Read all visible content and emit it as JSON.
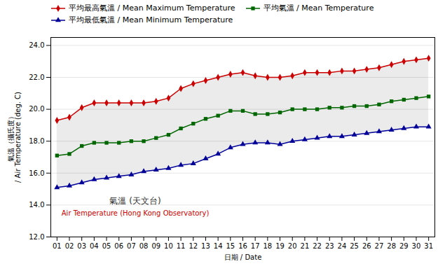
{
  "chart_data": {
    "type": "line",
    "xlabel": "日期 / Date",
    "ylabel": "氣溫（攝氏度）\n/ Air Temperature (deg. C)",
    "x": [
      1,
      2,
      3,
      4,
      5,
      6,
      7,
      8,
      9,
      10,
      11,
      12,
      13,
      14,
      15,
      16,
      17,
      18,
      19,
      20,
      21,
      22,
      23,
      24,
      25,
      26,
      27,
      28,
      29,
      30,
      31
    ],
    "series": [
      {
        "name": "平均最高氣溫 / Mean Maximum Temperature",
        "color": "#cc0000",
        "marker": "diamond",
        "values": [
          19.3,
          19.5,
          20.1,
          20.4,
          20.4,
          20.4,
          20.4,
          20.4,
          20.5,
          20.7,
          21.3,
          21.6,
          21.8,
          22.0,
          22.2,
          22.3,
          22.1,
          22.0,
          22.0,
          22.1,
          22.3,
          22.3,
          22.3,
          22.4,
          22.4,
          22.5,
          22.6,
          22.8,
          23.0,
          23.1,
          23.2
        ]
      },
      {
        "name": "平均氣溫 / Mean Temperature",
        "color": "#006600",
        "marker": "square",
        "values": [
          17.1,
          17.2,
          17.7,
          17.9,
          17.9,
          17.9,
          18.0,
          18.0,
          18.2,
          18.4,
          18.8,
          19.1,
          19.4,
          19.6,
          19.9,
          19.9,
          19.7,
          19.7,
          19.8,
          20.0,
          20.0,
          20.0,
          20.1,
          20.1,
          20.2,
          20.2,
          20.3,
          20.5,
          20.6,
          20.7,
          20.8
        ]
      },
      {
        "name": "平均最低氣溫 / Mean Minimum Temperature",
        "color": "#000099",
        "marker": "triangle",
        "values": [
          15.1,
          15.2,
          15.4,
          15.6,
          15.7,
          15.8,
          15.9,
          16.1,
          16.2,
          16.3,
          16.5,
          16.6,
          16.9,
          17.2,
          17.6,
          17.8,
          17.9,
          17.9,
          17.8,
          18.0,
          18.1,
          18.2,
          18.3,
          18.3,
          18.4,
          18.5,
          18.6,
          18.7,
          18.8,
          18.9,
          18.9
        ]
      }
    ],
    "xlim": [
      0.5,
      31.5
    ],
    "xticks": [
      {
        "value": 1,
        "label": "01"
      },
      {
        "value": 2,
        "label": "02"
      },
      {
        "value": 3,
        "label": "03"
      },
      {
        "value": 4,
        "label": "04"
      },
      {
        "value": 5,
        "label": "05"
      },
      {
        "value": 6,
        "label": "06"
      },
      {
        "value": 7,
        "label": "07"
      },
      {
        "value": 8,
        "label": "08"
      },
      {
        "value": 9,
        "label": "09"
      },
      {
        "value": 10,
        "label": "10"
      },
      {
        "value": 11,
        "label": "11"
      },
      {
        "value": 12,
        "label": "12"
      },
      {
        "value": 13,
        "label": "13"
      },
      {
        "value": 14,
        "label": "14"
      },
      {
        "value": 15,
        "label": "15"
      },
      {
        "value": 16,
        "label": "16"
      },
      {
        "value": 17,
        "label": "17"
      },
      {
        "value": 18,
        "label": "18"
      },
      {
        "value": 19,
        "label": "19"
      },
      {
        "value": 20,
        "label": "20"
      },
      {
        "value": 21,
        "label": "21"
      },
      {
        "value": 22,
        "label": "22"
      },
      {
        "value": 23,
        "label": "23"
      },
      {
        "value": 24,
        "label": "24"
      },
      {
        "value": 25,
        "label": "25"
      },
      {
        "value": 26,
        "label": "26"
      },
      {
        "value": 27,
        "label": "27"
      },
      {
        "value": 28,
        "label": "28"
      },
      {
        "value": 29,
        "label": "29"
      },
      {
        "value": 30,
        "label": "30"
      },
      {
        "value": 31,
        "label": "31"
      }
    ],
    "ylim": [
      12.0,
      24.5
    ],
    "yticks": [
      {
        "value": 12.0,
        "label": "12.0"
      },
      {
        "value": 14.0,
        "label": "14.0"
      },
      {
        "value": 16.0,
        "label": "16.0"
      },
      {
        "value": 18.0,
        "label": "18.0"
      },
      {
        "value": 20.0,
        "label": "20.0"
      },
      {
        "value": 22.0,
        "label": "22.0"
      },
      {
        "value": 24.0,
        "label": "24.0"
      }
    ],
    "grid": "y",
    "legend": "upper left",
    "annotations": [
      {
        "text": "氣溫 (天文台)",
        "color": "#333333"
      },
      {
        "text": "Air Temperature (Hong Kong Observatory)",
        "color": "#cc0000"
      }
    ]
  }
}
